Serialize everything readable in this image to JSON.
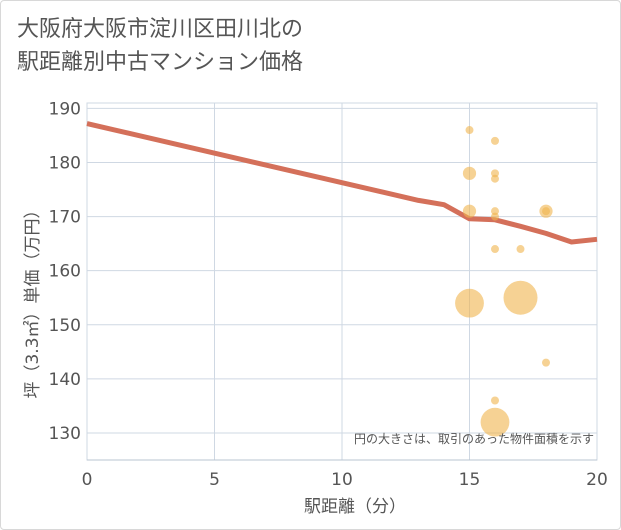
{
  "title_line1": "大阪府大阪市淀川区田川北の",
  "title_line2": "駅距離別中古マンション価格",
  "chart_data": {
    "type": "scatter",
    "title": "大阪府大阪市淀川区田川北の駅距離別中古マンション価格",
    "xlabel": "駅距離（分）",
    "ylabel": "坪（3.3㎡）単価（万円）",
    "xlim": [
      0,
      20
    ],
    "ylim": [
      125,
      191
    ],
    "xticks": [
      0,
      5,
      10,
      15,
      20
    ],
    "yticks": [
      130,
      140,
      150,
      160,
      170,
      180,
      190
    ],
    "grid": true,
    "note": "円の大きさは、取引のあった物件面積を示す",
    "point_color": "#f0b44c",
    "line_color": "#d4705a",
    "points": [
      {
        "x": 15,
        "y": 186,
        "size": 1
      },
      {
        "x": 15,
        "y": 178,
        "size": 2
      },
      {
        "x": 15,
        "y": 171,
        "size": 2
      },
      {
        "x": 15,
        "y": 154,
        "size": 5
      },
      {
        "x": 16,
        "y": 184,
        "size": 1
      },
      {
        "x": 16,
        "y": 178,
        "size": 1
      },
      {
        "x": 16,
        "y": 177,
        "size": 1
      },
      {
        "x": 16,
        "y": 171,
        "size": 1
      },
      {
        "x": 16,
        "y": 170,
        "size": 1
      },
      {
        "x": 16,
        "y": 164,
        "size": 1
      },
      {
        "x": 16,
        "y": 136,
        "size": 1
      },
      {
        "x": 16,
        "y": 132,
        "size": 5
      },
      {
        "x": 17,
        "y": 164,
        "size": 1
      },
      {
        "x": 17,
        "y": 155,
        "size": 6
      },
      {
        "x": 18,
        "y": 171,
        "size": 2
      },
      {
        "x": 18,
        "y": 171,
        "size": 1
      },
      {
        "x": 18,
        "y": 143,
        "size": 1
      }
    ],
    "trend_line": {
      "name": "trend",
      "x": [
        0,
        13,
        14,
        15,
        16,
        17,
        18,
        19,
        20
      ],
      "y": [
        187.2,
        173.0,
        172.2,
        169.6,
        169.4,
        168.2,
        166.9,
        165.3,
        165.8
      ]
    }
  }
}
